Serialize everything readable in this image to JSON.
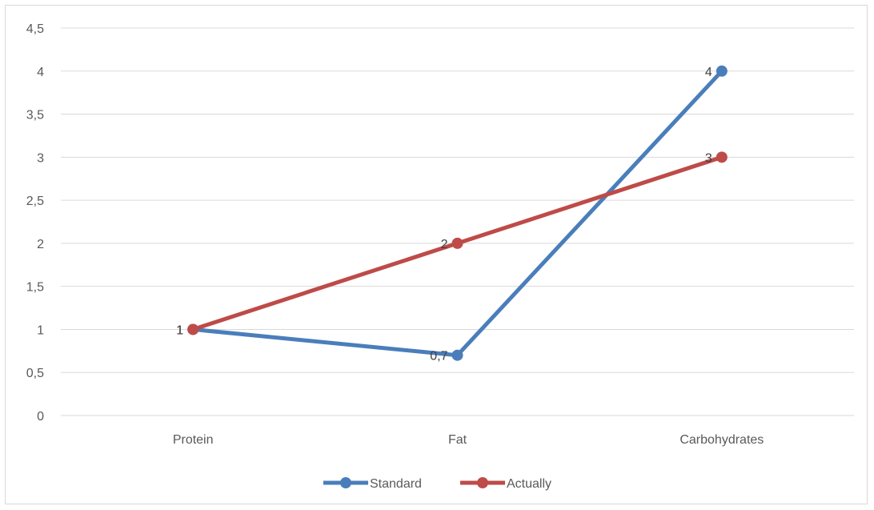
{
  "chart_data": {
    "type": "line",
    "title": "",
    "xlabel": "",
    "ylabel": "",
    "categories": [
      "Protein",
      "Fat",
      "Carbohydrates"
    ],
    "ylim": [
      0,
      4.5
    ],
    "yticks": [
      0,
      0.5,
      1,
      1.5,
      2,
      2.5,
      3,
      3.5,
      4,
      4.5
    ],
    "ytick_labels": [
      "0",
      "0,5",
      "1",
      "1,5",
      "2",
      "2,5",
      "3",
      "3,5",
      "4",
      "4,5"
    ],
    "grid": "horizontal",
    "legend_position": "bottom",
    "series": [
      {
        "name": "Standard",
        "values": [
          1,
          0.7,
          4
        ],
        "labels": [
          "1",
          "0,7",
          "4"
        ],
        "color": "#4a7ebb"
      },
      {
        "name": "Actually",
        "values": [
          1,
          2,
          3
        ],
        "labels": [
          "1",
          "2",
          "3"
        ],
        "color": "#be4b48"
      }
    ]
  }
}
